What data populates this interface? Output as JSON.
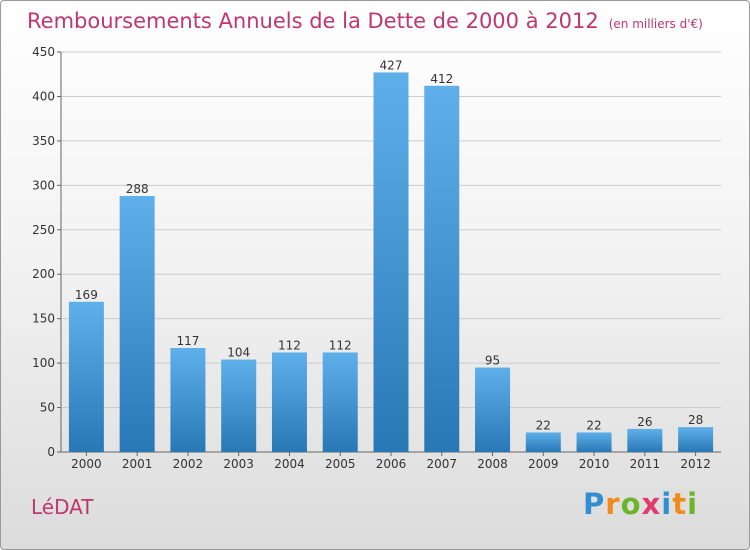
{
  "header": {
    "title": "Remboursements Annuels de la Dette de 2000 à 2012",
    "unit": "(en milliers d'€)"
  },
  "footer": {
    "town": "LéDAT",
    "logo_text": "Proxiti",
    "logo_letters": [
      {
        "ch": "P",
        "color": "#2f8fd0"
      },
      {
        "ch": "r",
        "color": "#f08a1c"
      },
      {
        "ch": "o",
        "color": "#6cb42c"
      },
      {
        "ch": "x",
        "color": "#e23a6f"
      },
      {
        "ch": "i",
        "color": "#2f8fd0"
      },
      {
        "ch": "t",
        "color": "#f08a1c"
      },
      {
        "ch": "i",
        "color": "#6cb42c"
      }
    ]
  },
  "colors": {
    "title": "#c0366e",
    "bar_top": "#5fb0ea",
    "bar_bottom": "#2778b5",
    "grid": "#cccccc",
    "axis_text": "#333333"
  },
  "chart_data": {
    "type": "bar",
    "title": "Remboursements Annuels de la Dette de 2000 à 2012",
    "xlabel": "",
    "ylabel": "",
    "categories": [
      "2000",
      "2001",
      "2002",
      "2003",
      "2004",
      "2005",
      "2006",
      "2007",
      "2008",
      "2009",
      "2010",
      "2011",
      "2012"
    ],
    "values": [
      169,
      288,
      117,
      104,
      112,
      112,
      427,
      412,
      95,
      22,
      22,
      26,
      28
    ],
    "ylim": [
      0,
      450
    ],
    "yticks": [
      0,
      50,
      100,
      150,
      200,
      250,
      300,
      350,
      400,
      450
    ],
    "grid": true,
    "legend": "none"
  }
}
